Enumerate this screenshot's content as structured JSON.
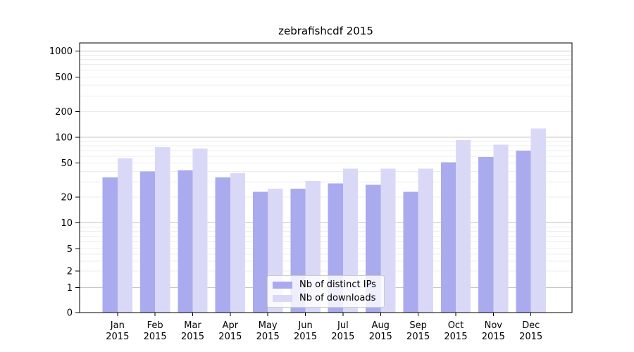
{
  "chart_data": {
    "type": "bar",
    "title": "zebrafishcdf 2015",
    "categories": [
      "Jan",
      "Feb",
      "Mar",
      "Apr",
      "May",
      "Jun",
      "Jul",
      "Aug",
      "Sep",
      "Oct",
      "Nov",
      "Dec"
    ],
    "year_label": "2015",
    "series": [
      {
        "name": "Nb of distinct IPs",
        "color": "#aaaaee",
        "values": [
          34,
          40,
          41,
          34,
          23,
          25,
          29,
          28,
          23,
          51,
          59,
          70
        ]
      },
      {
        "name": "Nb of downloads",
        "color": "#d9d9f7",
        "values": [
          57,
          77,
          74,
          38,
          25,
          31,
          43,
          43,
          43,
          93,
          82,
          127
        ]
      }
    ],
    "y_ticks": [
      0,
      1,
      2,
      5,
      10,
      20,
      50,
      100,
      200,
      500,
      1000
    ],
    "ylim": [
      0,
      1000
    ],
    "y_scale": "log1p",
    "grid": "horizontal, log major + minor lines",
    "grid_major_color": "#c6c6c6",
    "grid_minor_color": "#ececec",
    "axis_color": "#000000",
    "legend_position": "inside bottom-center"
  }
}
